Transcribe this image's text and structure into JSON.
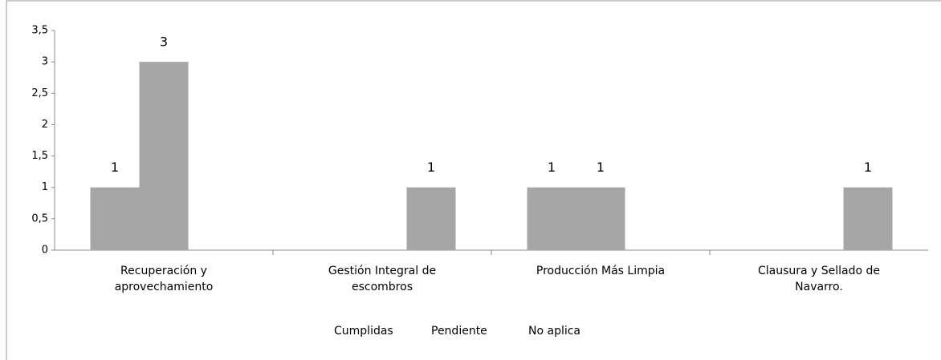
{
  "chart_data": {
    "type": "bar",
    "categories": [
      [
        "Recuperación y",
        "aprovechamiento"
      ],
      [
        "Gestión Integral de",
        "escombros"
      ],
      [
        "Producción Más Limpia"
      ],
      [
        "Clausura y Sellado de",
        "Navarro."
      ]
    ],
    "series": [
      {
        "name": "Cumplidas",
        "color": "#a6a6a6",
        "values": [
          1,
          0,
          1,
          0
        ]
      },
      {
        "name": "Pendiente",
        "color": "#a6a6a6",
        "values": [
          3,
          0,
          1,
          0
        ]
      },
      {
        "name": "No aplica",
        "color": "#a6a6a6",
        "values": [
          0,
          1,
          0,
          1
        ]
      }
    ],
    "ylim": [
      0,
      3.5
    ],
    "yticks": [
      0,
      {
        "value": 0.5,
        "label": "0,5"
      },
      1,
      {
        "value": 1.5,
        "label": "1,5"
      },
      2,
      {
        "value": 2.5,
        "label": "2,5"
      },
      3,
      {
        "value": 3.5,
        "label": "3,5"
      }
    ],
    "grid": false
  }
}
